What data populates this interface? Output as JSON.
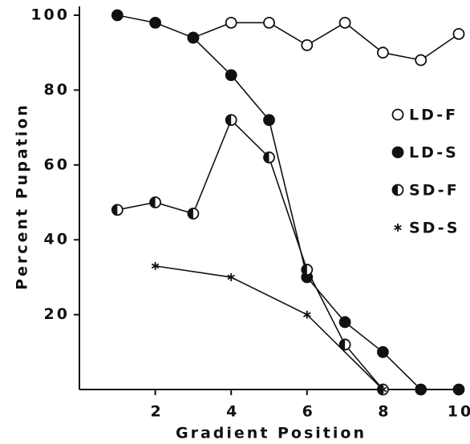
{
  "chart_data": {
    "type": "line",
    "x_label": "Gradient Position",
    "y_label": "Percent Pupation",
    "xlim": [
      0,
      10
    ],
    "xticks": [
      2,
      4,
      6,
      8,
      10
    ],
    "ylim": [
      0,
      100
    ],
    "yticks": [
      20,
      40,
      60,
      80,
      100
    ],
    "legend": "right",
    "series": [
      {
        "name": "LD-F",
        "marker": "open",
        "color": "#111111",
        "x": [
          3,
          4,
          5,
          6,
          7,
          8,
          9,
          10
        ],
        "values": [
          94,
          98,
          98,
          92,
          98,
          90,
          88,
          95
        ]
      },
      {
        "name": "LD-S",
        "marker": "filled",
        "color": "#111111",
        "x": [
          1,
          2,
          3,
          4,
          5,
          6,
          7,
          8,
          9,
          10
        ],
        "values": [
          100,
          98,
          94,
          84,
          72,
          30,
          18,
          10,
          0,
          0
        ]
      },
      {
        "name": "SD-F",
        "marker": "half",
        "color": "#111111",
        "x": [
          1,
          2,
          3,
          4,
          5,
          6,
          7,
          8
        ],
        "values": [
          48,
          50,
          47,
          72,
          62,
          32,
          12,
          0
        ]
      },
      {
        "name": "SD-S",
        "marker": "star",
        "color": "#111111",
        "x": [
          2,
          4,
          6,
          8
        ],
        "values": [
          33,
          30,
          20,
          0
        ]
      }
    ]
  }
}
